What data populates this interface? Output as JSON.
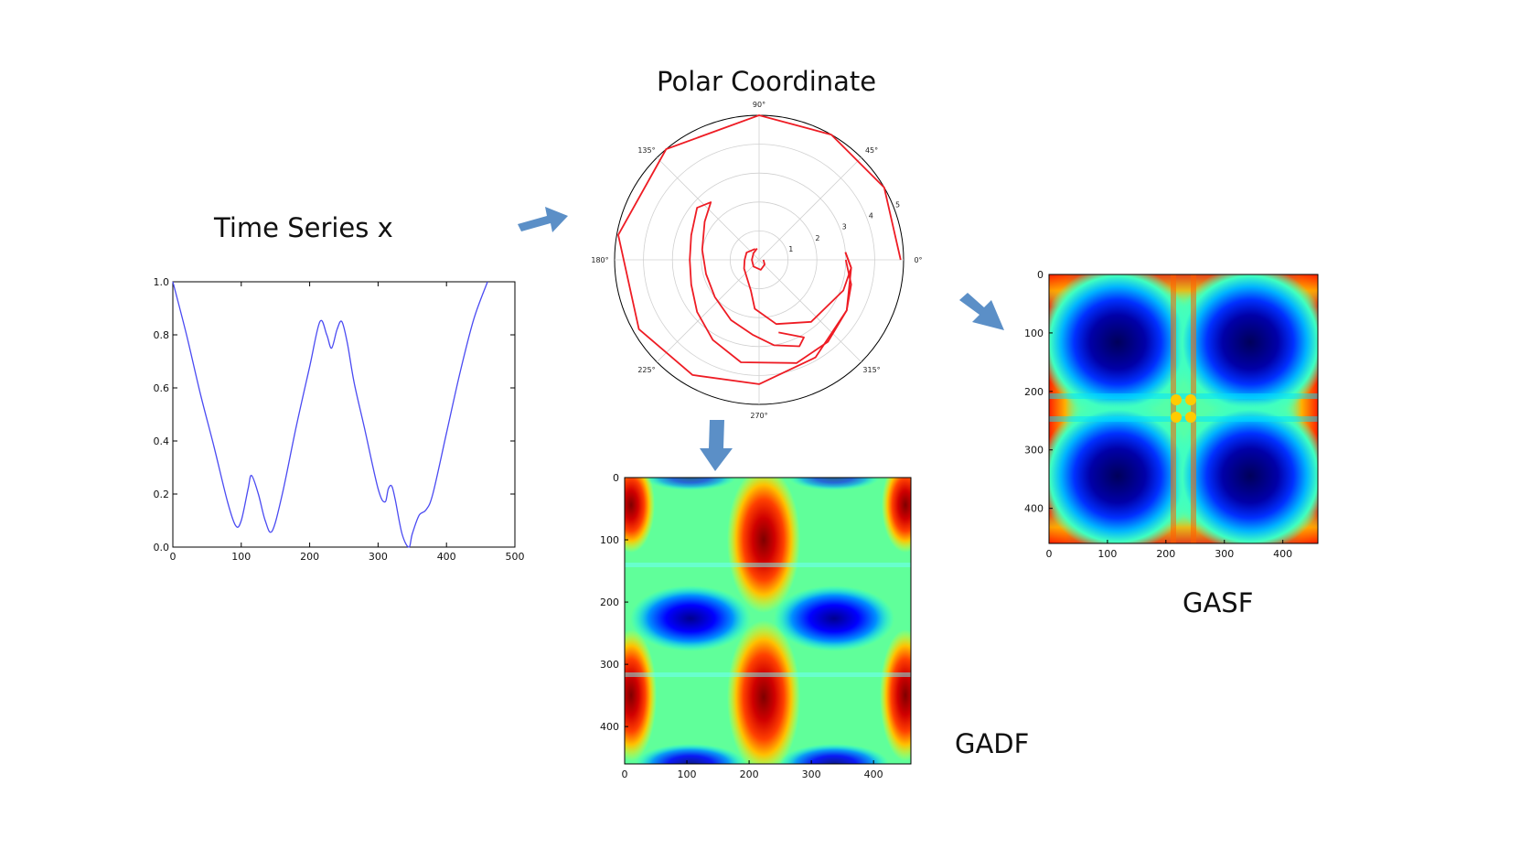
{
  "titles": {
    "time_series": "Time Series x",
    "polar": "Polar Coordinate",
    "gasf": "GASF",
    "gadf": "GADF"
  },
  "colors": {
    "line": "#4a4af2",
    "polar_line": "#ee1c24",
    "arrow": "#5b8fc7",
    "axes": "#000000",
    "grid": "#d0d0d0"
  },
  "chart_data": [
    {
      "type": "line",
      "title": "Time Series x",
      "x_ticks": [
        0,
        100,
        200,
        300,
        400,
        500
      ],
      "y_ticks": [
        "0.0",
        "0.2",
        "0.4",
        "0.6",
        "0.8",
        "1.0"
      ],
      "xlim": [
        0,
        500
      ],
      "ylim": [
        0,
        1
      ],
      "series": [
        {
          "x": [
            0,
            20,
            40,
            60,
            80,
            92,
            100,
            110,
            115,
            125,
            135,
            145,
            160,
            180,
            200,
            215,
            225,
            232,
            240,
            247,
            255,
            265,
            280,
            300,
            310,
            315,
            320,
            325,
            335,
            345,
            350,
            360,
            370,
            380,
            400,
            420,
            440,
            460
          ],
          "y": [
            1.0,
            0.8,
            0.58,
            0.38,
            0.17,
            0.08,
            0.1,
            0.22,
            0.27,
            0.2,
            0.1,
            0.06,
            0.2,
            0.45,
            0.68,
            0.85,
            0.8,
            0.75,
            0.82,
            0.85,
            0.77,
            0.62,
            0.45,
            0.22,
            0.17,
            0.22,
            0.23,
            0.18,
            0.05,
            0.0,
            0.05,
            0.12,
            0.14,
            0.2,
            0.43,
            0.66,
            0.86,
            1.0
          ]
        }
      ]
    },
    {
      "type": "line",
      "title": "Polar Coordinate",
      "angle_ticks": [
        "0°",
        "45°",
        "90°",
        "135°",
        "180°",
        "225°",
        "270°",
        "315°"
      ],
      "radial_ticks": [
        "1",
        "2",
        "3",
        "4",
        "5"
      ],
      "rlim": [
        0,
        5
      ]
    },
    {
      "type": "heatmap",
      "title": "GASF",
      "x_ticks": [
        "0",
        "100",
        "200",
        "300",
        "400"
      ],
      "y_ticks": [
        "0",
        "100",
        "200",
        "300",
        "400"
      ],
      "size": 460
    },
    {
      "type": "heatmap",
      "title": "GADF",
      "x_ticks": [
        "0",
        "100",
        "200",
        "300",
        "400"
      ],
      "y_ticks": [
        "0",
        "100",
        "200",
        "300",
        "400"
      ],
      "size": 460
    }
  ]
}
